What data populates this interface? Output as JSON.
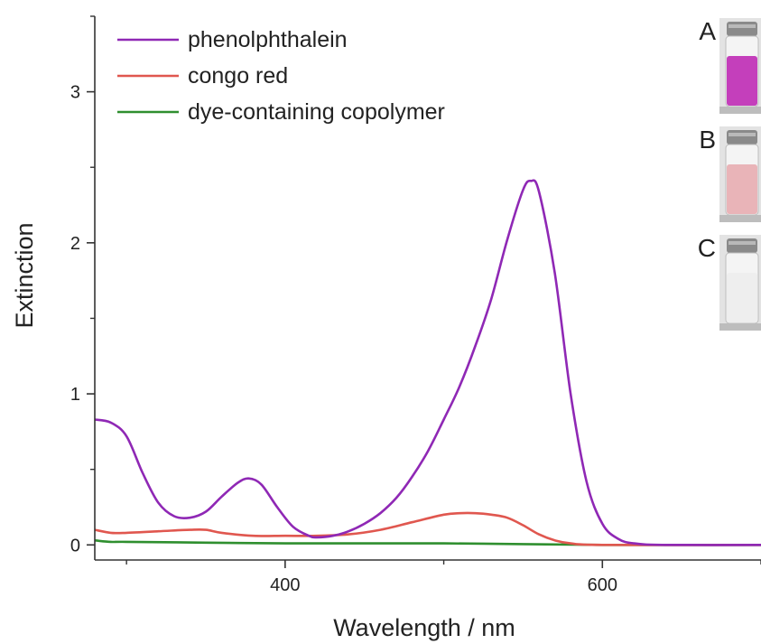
{
  "chart_data": {
    "type": "line",
    "xlabel": "Wavelength / nm",
    "ylabel": "Extinction",
    "xlim": [
      280,
      700
    ],
    "ylim": [
      -0.1,
      3.5
    ],
    "x_ticks": [
      400,
      600
    ],
    "x_minor_ticks": [
      300,
      500,
      700
    ],
    "y_ticks": [
      0,
      1,
      2,
      3
    ],
    "y_minor_ticks": [
      0.5,
      1.5,
      2.5,
      3.5
    ],
    "grid": false,
    "legend_position": "top-left",
    "series": [
      {
        "name": "phenolphthalein",
        "color": "#8f28b5",
        "points": [
          [
            280,
            0.83
          ],
          [
            290,
            0.81
          ],
          [
            300,
            0.72
          ],
          [
            310,
            0.48
          ],
          [
            320,
            0.28
          ],
          [
            330,
            0.19
          ],
          [
            340,
            0.18
          ],
          [
            350,
            0.22
          ],
          [
            360,
            0.32
          ],
          [
            370,
            0.41
          ],
          [
            377,
            0.44
          ],
          [
            385,
            0.4
          ],
          [
            395,
            0.25
          ],
          [
            405,
            0.12
          ],
          [
            415,
            0.06
          ],
          [
            420,
            0.05
          ],
          [
            430,
            0.06
          ],
          [
            440,
            0.09
          ],
          [
            450,
            0.14
          ],
          [
            460,
            0.21
          ],
          [
            470,
            0.31
          ],
          [
            480,
            0.45
          ],
          [
            490,
            0.62
          ],
          [
            500,
            0.83
          ],
          [
            510,
            1.05
          ],
          [
            520,
            1.32
          ],
          [
            530,
            1.63
          ],
          [
            540,
            2.02
          ],
          [
            550,
            2.35
          ],
          [
            555,
            2.41
          ],
          [
            560,
            2.34
          ],
          [
            570,
            1.8
          ],
          [
            580,
            1.0
          ],
          [
            590,
            0.42
          ],
          [
            600,
            0.14
          ],
          [
            610,
            0.04
          ],
          [
            620,
            0.01
          ],
          [
            640,
            0.0
          ],
          [
            700,
            0.0
          ]
        ]
      },
      {
        "name": "congo red",
        "color": "#e0574f",
        "points": [
          [
            280,
            0.1
          ],
          [
            290,
            0.08
          ],
          [
            300,
            0.08
          ],
          [
            320,
            0.09
          ],
          [
            340,
            0.1
          ],
          [
            350,
            0.1
          ],
          [
            360,
            0.08
          ],
          [
            380,
            0.06
          ],
          [
            400,
            0.06
          ],
          [
            420,
            0.06
          ],
          [
            440,
            0.07
          ],
          [
            460,
            0.1
          ],
          [
            480,
            0.15
          ],
          [
            500,
            0.2
          ],
          [
            510,
            0.21
          ],
          [
            520,
            0.21
          ],
          [
            530,
            0.2
          ],
          [
            540,
            0.18
          ],
          [
            550,
            0.13
          ],
          [
            560,
            0.07
          ],
          [
            570,
            0.03
          ],
          [
            580,
            0.01
          ],
          [
            600,
            0.0
          ],
          [
            700,
            0.0
          ]
        ]
      },
      {
        "name": "dye-containing copolymer",
        "color": "#2f8f2f",
        "points": [
          [
            280,
            0.03
          ],
          [
            290,
            0.02
          ],
          [
            300,
            0.02
          ],
          [
            350,
            0.015
          ],
          [
            400,
            0.01
          ],
          [
            450,
            0.01
          ],
          [
            500,
            0.01
          ],
          [
            550,
            0.005
          ],
          [
            600,
            0.0
          ],
          [
            700,
            0.0
          ]
        ]
      }
    ]
  },
  "insets": [
    {
      "label": "A",
      "liquid_color": "#c43fbb"
    },
    {
      "label": "B",
      "liquid_color": "#e9b4b8"
    },
    {
      "label": "C",
      "liquid_color": "#eeeeee"
    }
  ]
}
